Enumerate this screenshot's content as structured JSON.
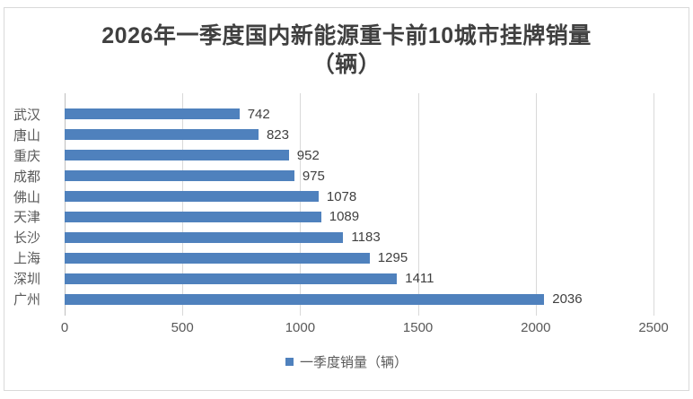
{
  "chart": {
    "title_lines": [
      "2026年一季度国内新能源重卡前10城市挂牌销量",
      "（辆）"
    ],
    "legend": {
      "label": "一季度销量（辆）"
    }
  },
  "chart_data": {
    "type": "bar",
    "orientation": "horizontal",
    "title": "2026年一季度国内新能源重卡前10城市挂牌销量（辆）",
    "categories": [
      "武汉",
      "唐山",
      "重庆",
      "成都",
      "佛山",
      "天津",
      "长沙",
      "上海",
      "深圳",
      "广州"
    ],
    "series": [
      {
        "name": "一季度销量（辆）",
        "values": [
          742,
          823,
          952,
          975,
          1078,
          1089,
          1183,
          1295,
          1411,
          2036
        ]
      }
    ],
    "data_labels": true,
    "xlim": [
      0,
      2500
    ],
    "x_ticks": [
      0,
      500,
      1000,
      1500,
      2000,
      2500
    ],
    "grid": true,
    "legend_position": "bottom",
    "bar_color": "#4f81bd",
    "gridline_color": "#d9d9d9",
    "axis_line_color": "#bfbfbf"
  }
}
